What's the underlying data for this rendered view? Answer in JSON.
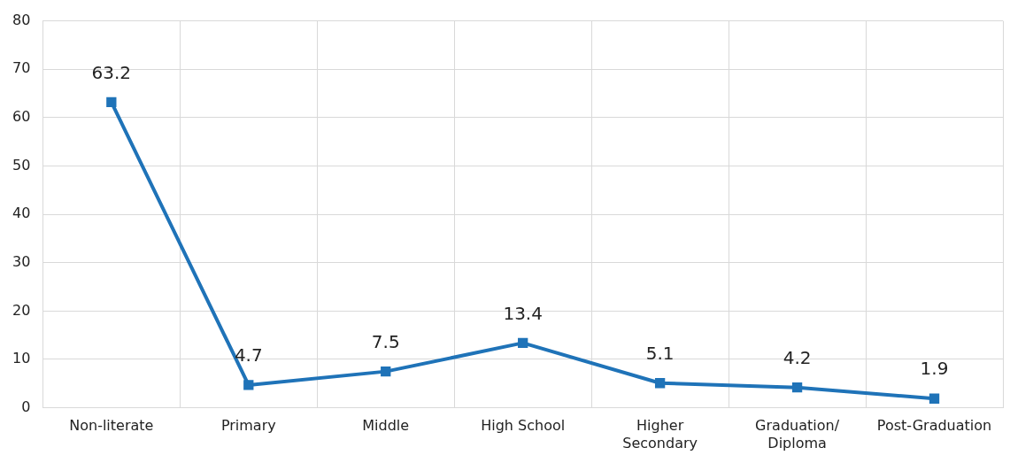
{
  "chart_data": {
    "type": "line",
    "categories": [
      "Non-literate",
      "Primary",
      "Middle",
      "High School",
      "Higher\nSecondary",
      "Graduation/\nDiploma",
      "Post-Graduation"
    ],
    "series": [
      {
        "color": "#1f73b8",
        "values": [
          63.2,
          4.7,
          7.5,
          13.4,
          5.1,
          4.2,
          1.9
        ]
      }
    ],
    "ylim": [
      0,
      80
    ],
    "yticks": [
      0,
      10,
      20,
      30,
      40,
      50,
      60,
      70,
      80
    ],
    "grid": true,
    "legend": false,
    "marker": "square",
    "line_style": "solid",
    "data_labels": true
  }
}
